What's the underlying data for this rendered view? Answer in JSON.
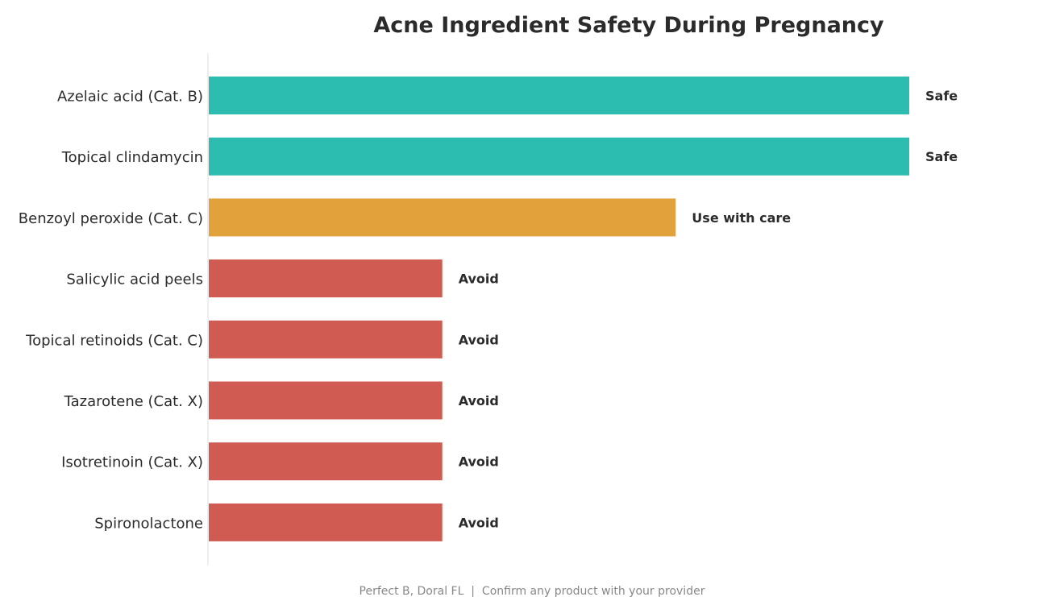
{
  "chart_data": {
    "type": "bar",
    "orientation": "horizontal",
    "title": "Acne Ingredient Safety During Pregnancy",
    "xlabel": "",
    "ylabel": "",
    "xlim": [
      0,
      3.3
    ],
    "grid": false,
    "legend": "none",
    "categories": [
      "Azelaic acid (Cat. B)",
      "Topical clindamycin",
      "Benzoyl peroxide (Cat. C)",
      "Salicylic acid peels",
      "Topical retinoids (Cat. C)",
      "Tazarotene (Cat. X)",
      "Isotretinoin (Cat. X)",
      "Spironolactone"
    ],
    "values": [
      3,
      3,
      2,
      1,
      1,
      1,
      1,
      1
    ],
    "data_labels": [
      "Safe",
      "Safe",
      "Use with care",
      "Avoid",
      "Avoid",
      "Avoid",
      "Avoid",
      "Avoid"
    ],
    "status_colors": {
      "Safe": "#2dbcb0",
      "Use with care": "#e1a23c",
      "Avoid": "#d05b52"
    }
  },
  "footer": {
    "text": "Perfect B, Doral FL  |  Confirm any product with your provider"
  }
}
